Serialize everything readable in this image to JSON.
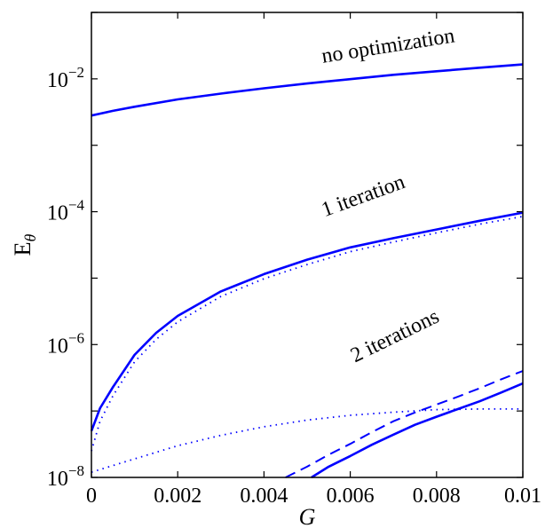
{
  "chart_data": {
    "type": "line",
    "title": "",
    "xlabel": "G",
    "ylabel": "E",
    "ylabel_subscript": "θ",
    "xlim": [
      0,
      0.01
    ],
    "ylim": [
      1e-08,
      0.1
    ],
    "yscale": "log",
    "grid": false,
    "line_color": "#0000ff",
    "x_ticks": [
      {
        "value": 0,
        "label": "0"
      },
      {
        "value": 0.002,
        "label": "0.002"
      },
      {
        "value": 0.004,
        "label": "0.004"
      },
      {
        "value": 0.006,
        "label": "0.006"
      },
      {
        "value": 0.008,
        "label": "0.008"
      },
      {
        "value": 0.01,
        "label": "0.01"
      }
    ],
    "y_ticks": [
      {
        "value": 1e-08,
        "base": "10",
        "exp": "−8"
      },
      {
        "value": 1e-06,
        "base": "10",
        "exp": "−6"
      },
      {
        "value": 0.0001,
        "base": "10",
        "exp": "−4"
      },
      {
        "value": 0.01,
        "base": "10",
        "exp": "−2"
      }
    ],
    "annotations": [
      {
        "text": "no optimization",
        "x": 0.0069,
        "y": 0.025,
        "rotation": -9
      },
      {
        "text": "1 iteration",
        "x": 0.00635,
        "y": 0.00014,
        "rotation": -20
      },
      {
        "text": "2 iterations",
        "x": 0.0071,
        "y": 1.1e-06,
        "rotation": -26
      }
    ],
    "series": [
      {
        "style": "solid",
        "x": [
          0,
          0.0005,
          0.001,
          0.002,
          0.003,
          0.004,
          0.005,
          0.006,
          0.007,
          0.008,
          0.009,
          0.01
        ],
        "y": [
          0.0028,
          0.0033,
          0.0038,
          0.0049,
          0.006,
          0.0072,
          0.0085,
          0.0099,
          0.0115,
          0.013,
          0.0147,
          0.0165
        ]
      },
      {
        "style": "solid",
        "x": [
          0,
          0.0002,
          0.0005,
          0.001,
          0.0015,
          0.002,
          0.003,
          0.004,
          0.005,
          0.006,
          0.007,
          0.008,
          0.009,
          0.01
        ],
        "y": [
          5e-08,
          1.1e-07,
          2.3e-07,
          7e-07,
          1.5e-06,
          2.7e-06,
          6.3e-06,
          1.15e-05,
          1.9e-05,
          2.9e-05,
          4e-05,
          5.4e-05,
          7.3e-05,
          9.7e-05
        ]
      },
      {
        "style": "dotted",
        "x": [
          0,
          0.0002,
          0.0005,
          0.001,
          0.0015,
          0.002,
          0.003,
          0.004,
          0.005,
          0.006,
          0.007,
          0.008,
          0.009,
          0.01
        ],
        "y": [
          2.5e-08,
          7e-08,
          1.7e-07,
          5.5e-07,
          1.2e-06,
          2.2e-06,
          5.3e-06,
          9.8e-06,
          1.6e-05,
          2.5e-05,
          3.5e-05,
          4.8e-05,
          6.5e-05,
          8.5e-05
        ]
      },
      {
        "style": "dotted",
        "x": [
          0,
          0.001,
          0.002,
          0.003,
          0.004,
          0.005,
          0.006,
          0.007,
          0.008,
          0.009,
          0.01
        ],
        "y": [
          1.2e-08,
          1.9e-08,
          3e-08,
          4.3e-08,
          5.8e-08,
          7.3e-08,
          8.6e-08,
          9.6e-08,
          1.05e-07,
          1.07e-07,
          1.07e-07
        ]
      },
      {
        "style": "dashed",
        "x": [
          0.0045,
          0.005,
          0.0055,
          0.006,
          0.0065,
          0.007,
          0.0075,
          0.008,
          0.0085,
          0.009,
          0.0095,
          0.01
        ],
        "y": [
          1e-08,
          1.45e-08,
          2.2e-08,
          3.2e-08,
          4.8e-08,
          7e-08,
          9.5e-08,
          1.25e-07,
          1.65e-07,
          2.2e-07,
          3e-07,
          4e-07
        ]
      },
      {
        "style": "solid",
        "x": [
          0.0051,
          0.0055,
          0.006,
          0.0065,
          0.007,
          0.0075,
          0.008,
          0.0085,
          0.009,
          0.0095,
          0.01
        ],
        "y": [
          1e-08,
          1.45e-08,
          2.1e-08,
          3.1e-08,
          4.4e-08,
          6.2e-08,
          8.2e-08,
          1.07e-07,
          1.4e-07,
          1.9e-07,
          2.6e-07
        ]
      }
    ]
  }
}
